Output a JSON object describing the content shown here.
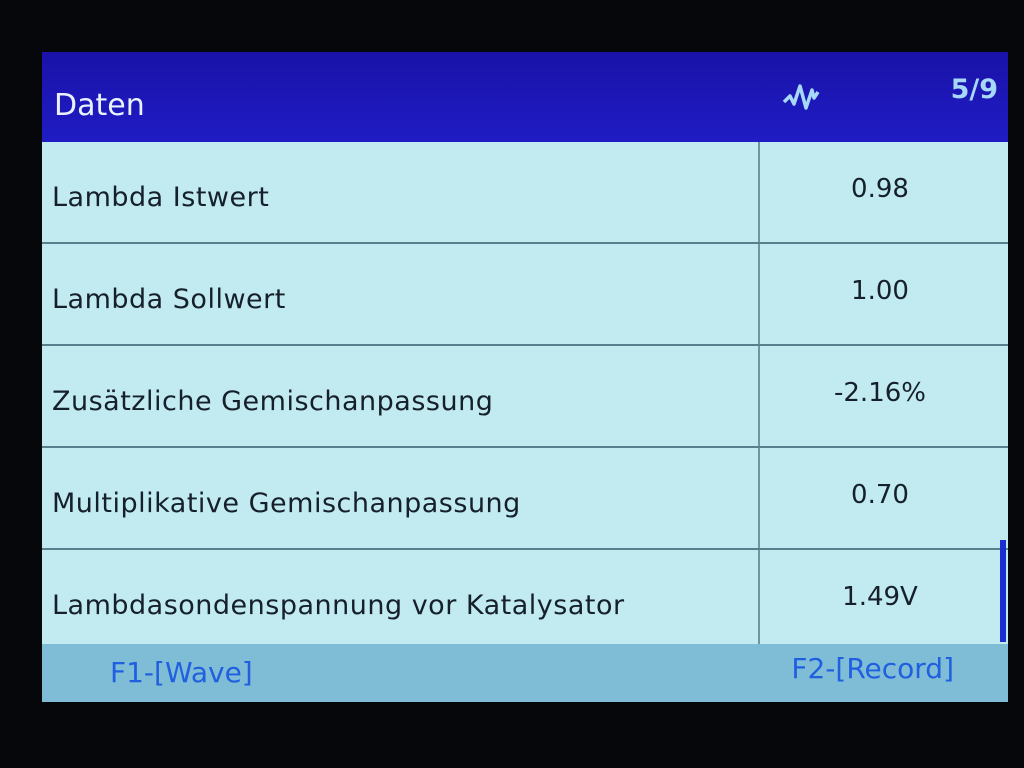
{
  "header": {
    "title": "Daten",
    "icon": "wave-icon",
    "page": "5/9"
  },
  "rows": [
    {
      "label": "Lambda Istwert",
      "value": "0.98"
    },
    {
      "label": "Lambda Sollwert",
      "value": "1.00"
    },
    {
      "label": "Zusätzliche Gemischanpassung",
      "value": "-2.16%"
    },
    {
      "label": "Multiplikative Gemischanpassung",
      "value": "0.70"
    },
    {
      "label": "Lambdasondenspannung vor Katalysator",
      "value": "1.49V"
    }
  ],
  "footer": {
    "f1": "F1-[Wave]",
    "f2": "F2-[Record]"
  },
  "colors": {
    "header": "#1a12a8",
    "row_bg": "#c2eaf1",
    "footer_bg": "#7fbdd6",
    "softkey_text": "#1f5fe0"
  }
}
